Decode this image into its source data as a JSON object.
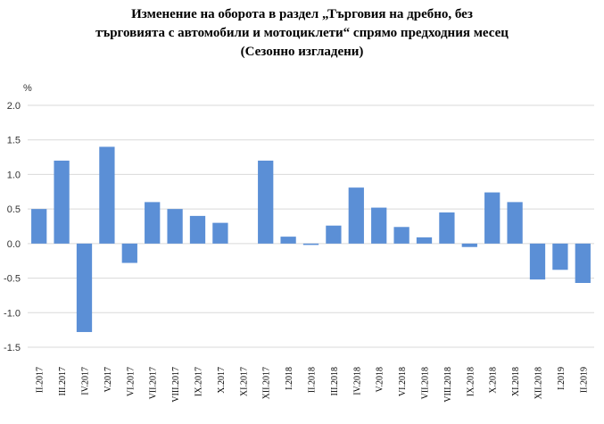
{
  "chart_data": {
    "type": "bar",
    "title_lines": [
      "Изменение на оборота в раздел „Търговия на дребно, без",
      "търговията с автомобили и мотоциклети“ спрямо предходния месец",
      "(Сезонно изгладени)"
    ],
    "ylabel": "%",
    "ylim": [
      -1.5,
      2.0
    ],
    "yticks": [
      "2.0",
      "1.5",
      "1.0",
      "0.5",
      "0.0",
      "-0.5",
      "-1.0",
      "-1.5"
    ],
    "ytick_values": [
      2.0,
      1.5,
      1.0,
      0.5,
      0.0,
      -0.5,
      -1.0,
      -1.5
    ],
    "grid": true,
    "bar_color": "#5B8FD6",
    "categories": [
      "II.2017",
      "III.2017",
      "IV.2017",
      "V.2017",
      "VI.2017",
      "VII.2017",
      "VIII.2017",
      "IX.2017",
      "X.2017",
      "XI.2017",
      "XII.2017",
      "I.2018",
      "II.2018",
      "III.2018",
      "IV.2018",
      "V.2018",
      "VI.2018",
      "VII.2018",
      "VIII.2018",
      "IX.2018",
      "X.2018",
      "XI.2018",
      "XII.2018",
      "I.2019",
      "II.2019"
    ],
    "values": [
      0.5,
      1.2,
      -1.28,
      1.4,
      -0.28,
      0.6,
      0.5,
      0.4,
      0.3,
      0.0,
      1.2,
      0.1,
      -0.02,
      0.26,
      0.81,
      0.52,
      0.24,
      0.09,
      0.45,
      -0.05,
      0.74,
      0.6,
      -0.52,
      -0.38,
      -0.57
    ]
  }
}
